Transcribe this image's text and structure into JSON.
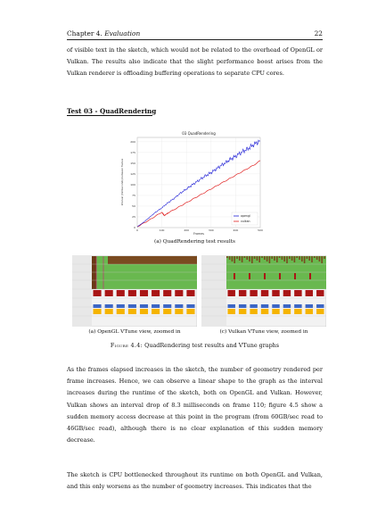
{
  "header": {
    "chapter": "Chapter 4.",
    "chapter_title": "Evaluation",
    "page_number": "22"
  },
  "paragraphs": {
    "p1": "of visible text in the sketch, which would not be related to the overhead of OpenGL or Vulkan. The results also indicate that the slight performance boost arises from the Vulkan renderer is offloading buffering operations to separate CPU cores.",
    "p2": "As the frames elapsed increases in the sketch, the number of geometry rendered per frame increases. Hence, we can observe a linear shape to the graph as the interval increases during the runtime of the sketch, both on OpenGL and Vulkan. However, Vulkan shows an interval drop of 8.3 milliseconds on frame 110; figure 4.5 show a sudden memory access decrease at this point in the program (from 60GB/sec read to 46GB/sec read), although there is no clear explanation of this sudden memory decrease.",
    "p3": "The sketch is CPU bottlenecked throughout its runtime on both OpenGL and Vulkan, and this only worsens as the number of geometry increases. This indicates that the"
  },
  "section_title": "Test 03 - QuadRendering",
  "captions": {
    "chart": "(a) QuadRendering test results",
    "vtune_a": "(a) OpenGL VTune view, zoomed in",
    "vtune_c": "(c) Vulkan VTune view, zoomed in",
    "figure_label": "Figure 4.4:",
    "figure_text": "QuadRendering test results and VTune graphs"
  },
  "colors": {
    "opengl": "#1f1fd6",
    "vulkan": "#e02020",
    "vtune_green": "#69b84f",
    "vtune_dark": "#7a4a20",
    "vtune_red": "#a91616",
    "vtune_blue": "#3d66c4",
    "vtune_yellow": "#f5b400"
  },
  "chart_data": {
    "type": "line",
    "title": "03 QuadRendering",
    "xlabel": "Frames",
    "ylabel": "Interval (milliseconds) between frames",
    "xlim": [
      0,
      500
    ],
    "ylim": [
      0,
      210
    ],
    "x_ticks": [
      "0",
      "100",
      "200",
      "300",
      "400",
      "500"
    ],
    "y_ticks": [
      "0",
      "25",
      "50",
      "75",
      "100",
      "125",
      "150",
      "175",
      "200"
    ],
    "legend_position": "bottom-right",
    "grid": true,
    "series": [
      {
        "name": "opengl",
        "x": [
          0,
          25,
          50,
          75,
          100,
          125,
          150,
          175,
          200,
          225,
          250,
          275,
          300,
          325,
          350,
          375,
          400,
          425,
          450,
          475,
          500
        ],
        "values": [
          2,
          12,
          24,
          36,
          46,
          58,
          68,
          80,
          90,
          100,
          110,
          120,
          128,
          138,
          148,
          158,
          166,
          176,
          184,
          194,
          202
        ]
      },
      {
        "name": "vulkan",
        "x": [
          0,
          25,
          50,
          75,
          100,
          110,
          125,
          150,
          175,
          200,
          225,
          250,
          275,
          300,
          325,
          350,
          375,
          400,
          425,
          450,
          475,
          500
        ],
        "values": [
          2,
          10,
          18,
          27,
          36,
          28,
          34,
          42,
          50,
          58,
          66,
          74,
          82,
          90,
          98,
          106,
          114,
          122,
          130,
          138,
          146,
          156
        ]
      }
    ]
  }
}
